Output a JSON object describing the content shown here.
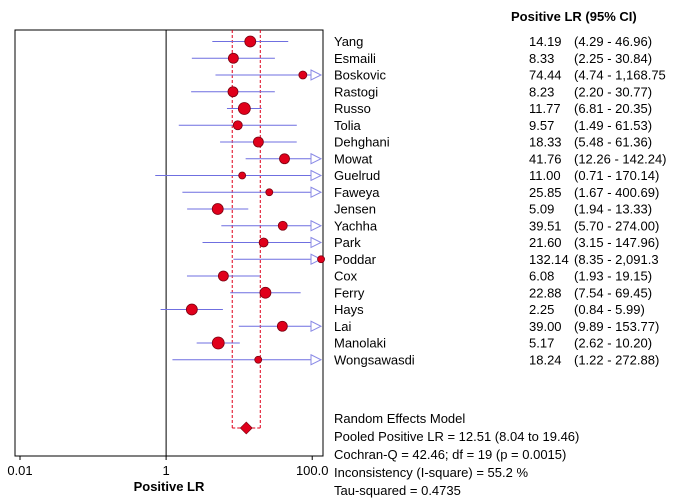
{
  "chart_data": {
    "type": "forest",
    "title": "Positive LR (95% CI)",
    "xlabel": "Positive LR",
    "x_scale": "log",
    "xlim": [
      0.01,
      120
    ],
    "ticks": [
      {
        "value": 0.01,
        "label": "0.01"
      },
      {
        "value": 1,
        "label": "1"
      },
      {
        "value": 100,
        "label": "100.0"
      }
    ],
    "studies": [
      {
        "name": "Yang",
        "est": 14.19,
        "ci_text": "(4.29 - 46.96)",
        "lo": 4.29,
        "hi": 46.96,
        "weight": 5.5,
        "arrow": false
      },
      {
        "name": "Esmaili",
        "est": 8.33,
        "ci_text": "(2.25 - 30.84)",
        "lo": 2.25,
        "hi": 30.84,
        "weight": 5,
        "arrow": false
      },
      {
        "name": "Boskovic",
        "est": 74.44,
        "ci_text": "(4.74 - 1,168.75",
        "lo": 4.74,
        "hi": 1168.75,
        "weight": 4,
        "arrow": true
      },
      {
        "name": "Rastogi",
        "est": 8.23,
        "ci_text": "(2.20 - 30.77)",
        "lo": 2.2,
        "hi": 30.77,
        "weight": 5,
        "arrow": false
      },
      {
        "name": "Russo",
        "est": 11.77,
        "ci_text": "(6.81 - 20.35)",
        "lo": 6.81,
        "hi": 20.35,
        "weight": 6,
        "arrow": false
      },
      {
        "name": "Tolia",
        "est": 9.57,
        "ci_text": "(1.49 - 61.53)",
        "lo": 1.49,
        "hi": 61.53,
        "weight": 4.5,
        "arrow": false
      },
      {
        "name": "Dehghani",
        "est": 18.33,
        "ci_text": "(5.48 - 61.36)",
        "lo": 5.48,
        "hi": 61.36,
        "weight": 5,
        "arrow": false
      },
      {
        "name": "Mowat",
        "est": 41.76,
        "ci_text": "(12.26 - 142.24)",
        "lo": 12.26,
        "hi": 142.24,
        "weight": 5,
        "arrow": true
      },
      {
        "name": "Guelrud",
        "est": 11.0,
        "ci_text": "(0.71 - 170.14)",
        "lo": 0.71,
        "hi": 170.14,
        "weight": 3.5,
        "arrow": true
      },
      {
        "name": "Faweya",
        "est": 25.85,
        "ci_text": "(1.67 - 400.69)",
        "lo": 1.67,
        "hi": 400.69,
        "weight": 3.5,
        "arrow": true
      },
      {
        "name": "Jensen",
        "est": 5.09,
        "ci_text": "(1.94 - 13.33)",
        "lo": 1.94,
        "hi": 13.33,
        "weight": 5.5,
        "arrow": false
      },
      {
        "name": "Yachha",
        "est": 39.51,
        "ci_text": "(5.70 - 274.00)",
        "lo": 5.7,
        "hi": 274.0,
        "weight": 4.5,
        "arrow": true
      },
      {
        "name": "Park",
        "est": 21.6,
        "ci_text": "(3.15 - 147.96)",
        "lo": 3.15,
        "hi": 147.96,
        "weight": 4.5,
        "arrow": true
      },
      {
        "name": "Poddar",
        "est": 132.14,
        "ci_text": "(8.35 - 2,091.3",
        "lo": 8.35,
        "hi": 2091.3,
        "weight": 3.5,
        "arrow": true
      },
      {
        "name": "Cox",
        "est": 6.08,
        "ci_text": "(1.93 - 19.15)",
        "lo": 1.93,
        "hi": 19.15,
        "weight": 5,
        "arrow": false
      },
      {
        "name": "Ferry",
        "est": 22.88,
        "ci_text": "(7.54 - 69.45)",
        "lo": 7.54,
        "hi": 69.45,
        "weight": 5.5,
        "arrow": false
      },
      {
        "name": "Hays",
        "est": 2.25,
        "ci_text": "(0.84 - 5.99)",
        "lo": 0.84,
        "hi": 5.99,
        "weight": 5.5,
        "arrow": false
      },
      {
        "name": "Lai",
        "est": 39.0,
        "ci_text": "(9.89 - 153.77)",
        "lo": 9.89,
        "hi": 153.77,
        "weight": 5,
        "arrow": true
      },
      {
        "name": "Manolaki",
        "est": 5.17,
        "ci_text": "(2.62 - 10.20)",
        "lo": 2.62,
        "hi": 10.2,
        "weight": 6,
        "arrow": false
      },
      {
        "name": "Wongsawasdi",
        "est": 18.24,
        "ci_text": "(1.22 - 272.88)",
        "lo": 1.22,
        "hi": 272.88,
        "weight": 3.5,
        "arrow": true
      }
    ],
    "pooled": {
      "est": 12.51,
      "lo": 8.04,
      "hi": 19.46
    },
    "summary_lines": [
      "Random Effects Model",
      "Pooled Positive LR = 12.51 (8.04 to 19.46)",
      "Cochran-Q = 42.46; df = 19 (p = 0.0015)",
      "Inconsistency (I-square) = 55.2 %",
      "Tau-squared = 0.4735"
    ],
    "colors": {
      "point": "#e0001b",
      "ci_line": "#6f6fe0",
      "arrow": "#8a8ae6",
      "pooled_box": "#e0001b",
      "null_line": "#000000",
      "frame": "#000000"
    }
  }
}
